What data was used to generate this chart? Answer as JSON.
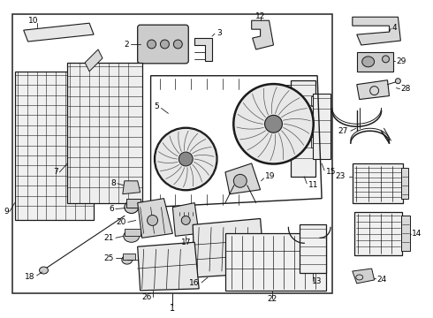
{
  "bg_color": "#ffffff",
  "line_color": "#1a1a1a",
  "text_color": "#000000",
  "fig_width": 4.9,
  "fig_height": 3.6,
  "dpi": 100
}
